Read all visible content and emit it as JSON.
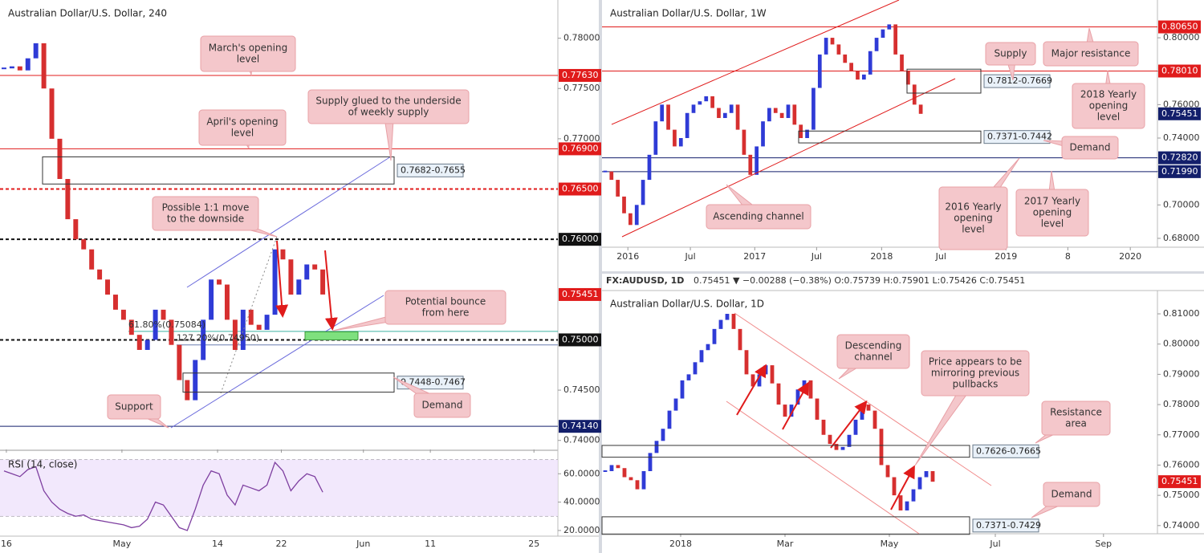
{
  "chart_data": [
    {
      "type": "candlestick",
      "title": "Australian Dollar/U.S. Dollar, 240",
      "up_color": "#2f3bd6",
      "down_color": "#d62f2f",
      "xlim": [
        0,
        70
      ],
      "ylim": [
        0.7391,
        0.7838
      ],
      "xticks": [
        {
          "value": 0.8,
          "label": "16"
        },
        {
          "value": 15.3,
          "label": "May"
        },
        {
          "value": 27.3,
          "label": "14"
        },
        {
          "value": 35.3,
          "label": "22"
        },
        {
          "value": 45.6,
          "label": "Jun"
        },
        {
          "value": 54,
          "label": "11"
        },
        {
          "value": 67,
          "label": "25"
        }
      ],
      "yticks": [
        {
          "value": 0.78,
          "label": "0.78000"
        },
        {
          "value": 0.775,
          "label": "0.77500"
        },
        {
          "value": 0.77,
          "label": "0.77000"
        },
        {
          "value": 0.745,
          "label": "0.74500"
        },
        {
          "value": 0.74,
          "label": "0.74000"
        }
      ],
      "values": [
        0.777,
        0.7772,
        0.7768,
        0.778,
        0.7795,
        0.775,
        0.77,
        0.766,
        0.762,
        0.76,
        0.759,
        0.757,
        0.756,
        0.7545,
        0.753,
        0.752,
        0.7505,
        0.749,
        0.75,
        0.753,
        0.752,
        0.7495,
        0.746,
        0.744,
        0.748,
        0.752,
        0.756,
        0.7555,
        0.752,
        0.749,
        0.753,
        0.7515,
        0.751,
        0.7525,
        0.759,
        0.758,
        0.7545,
        0.756,
        0.7575,
        0.757,
        0.75451
      ],
      "levels": [
        {
          "value": 0.7763,
          "label": "0.77630",
          "color": "#e01b1b",
          "style": "solid"
        },
        {
          "value": 0.769,
          "label": "0.76900",
          "color": "#e01b1b",
          "style": "solid"
        },
        {
          "value": 0.765,
          "label": "0.76500",
          "color": "#e01b1b",
          "style": "dashed"
        },
        {
          "value": 0.76,
          "label": "0.76000",
          "color": "#111111",
          "style": "dashed"
        },
        {
          "value": 0.75451,
          "label": "0.75451",
          "color": "#e01b1b",
          "style": "none"
        },
        {
          "value": 0.75,
          "label": "0.75000",
          "color": "#111111",
          "style": "dashed"
        },
        {
          "value": 0.7414,
          "label": "0.74140",
          "color": "#131f6b",
          "style": "solid"
        }
      ],
      "zones": [
        {
          "low": 0.7655,
          "high": 0.7682,
          "label": "0.7682-0.7655"
        },
        {
          "low": 0.7448,
          "high": 0.7467,
          "label": "0.7448-0.7467"
        },
        {
          "low": 0.75,
          "high": 0.7508,
          "color": "#7ee07e"
        }
      ],
      "fibs": [
        {
          "value": 0.75084,
          "label": "61.80%(0.75084)",
          "color": "#3cb3a0"
        },
        {
          "value": 0.7495,
          "label": "127.20%(0.74950)",
          "color": "#6a7fb0"
        }
      ],
      "annotations": [
        {
          "lines": [
            "March's opening",
            "level"
          ]
        },
        {
          "lines": [
            "April's opening",
            "level"
          ]
        },
        {
          "lines": [
            "Supply glued to the underside",
            "of weekly supply"
          ]
        },
        {
          "lines": [
            "Possible 1:1 move",
            "to the downside"
          ]
        },
        {
          "lines": [
            "Potential bounce",
            "from here"
          ]
        },
        {
          "lines": [
            "Support"
          ]
        },
        {
          "lines": [
            "Demand"
          ]
        }
      ]
    },
    {
      "type": "line",
      "title": "RSI (14, close)",
      "color": "#7e3fa0",
      "xlim": [
        0,
        70
      ],
      "ylim": [
        16,
        76
      ],
      "yticks": [
        {
          "value": 20,
          "label": "20.0000"
        },
        {
          "value": 40,
          "label": "40.0000"
        },
        {
          "value": 60,
          "label": "60.0000"
        }
      ],
      "bands": [
        30,
        70
      ],
      "values": [
        62,
        60,
        58,
        63,
        65,
        48,
        40,
        35,
        32,
        30,
        31,
        28,
        27,
        26,
        25,
        24,
        22,
        23,
        28,
        40,
        38,
        30,
        22,
        20,
        35,
        52,
        62,
        60,
        45,
        38,
        52,
        50,
        48,
        52,
        68,
        62,
        48,
        55,
        60,
        58,
        47
      ]
    },
    {
      "type": "candlestick",
      "title": "Australian Dollar/U.S. Dollar, 1W",
      "up_color": "#2f3bd6",
      "down_color": "#d62f2f",
      "xlim": [
        0,
        88
      ],
      "ylim": [
        0.6747,
        0.8226
      ],
      "xticks": [
        {
          "value": 4.1,
          "label": "2016"
        },
        {
          "value": 14,
          "label": "Jul"
        },
        {
          "value": 24.2,
          "label": "2017"
        },
        {
          "value": 34,
          "label": "Jul"
        },
        {
          "value": 44.3,
          "label": "2018"
        },
        {
          "value": 53.7,
          "label": "Jul"
        },
        {
          "value": 64,
          "label": "2019"
        },
        {
          "value": 73.8,
          "label": "8"
        },
        {
          "value": 83.7,
          "label": "2020"
        }
      ],
      "yticks": [
        {
          "value": 0.68,
          "label": "0.68000"
        },
        {
          "value": 0.7,
          "label": "0.70000"
        },
        {
          "value": 0.72,
          "label": "0.72000"
        },
        {
          "value": 0.74,
          "label": "0.74000"
        },
        {
          "value": 0.76,
          "label": "0.76000"
        },
        {
          "value": 0.78,
          "label": "0.78000"
        },
        {
          "value": 0.8,
          "label": "0.80000"
        }
      ],
      "values": [
        0.72,
        0.715,
        0.705,
        0.695,
        0.688,
        0.7,
        0.715,
        0.73,
        0.75,
        0.76,
        0.745,
        0.735,
        0.74,
        0.755,
        0.76,
        0.762,
        0.765,
        0.758,
        0.752,
        0.755,
        0.76,
        0.745,
        0.73,
        0.718,
        0.735,
        0.75,
        0.758,
        0.755,
        0.752,
        0.76,
        0.748,
        0.74,
        0.745,
        0.77,
        0.79,
        0.8,
        0.796,
        0.79,
        0.785,
        0.78,
        0.775,
        0.778,
        0.792,
        0.8,
        0.805,
        0.808,
        0.79,
        0.78,
        0.772,
        0.76,
        0.7545
      ],
      "levels": [
        {
          "value": 0.8065,
          "label": "0.80650",
          "color": "#e01b1b",
          "style": "solid"
        },
        {
          "value": 0.7801,
          "label": "0.78010",
          "color": "#e01b1b",
          "style": "solid"
        },
        {
          "value": 0.75451,
          "label": "0.75451",
          "color": "#131f6b",
          "style": "none"
        },
        {
          "value": 0.7282,
          "label": "0.72820",
          "color": "#131f6b",
          "style": "solid"
        },
        {
          "value": 0.7199,
          "label": "0.71990",
          "color": "#131f6b",
          "style": "solid"
        }
      ],
      "zones": [
        {
          "low": 0.7669,
          "high": 0.7812,
          "label": "0.7812-0.7669"
        },
        {
          "low": 0.7371,
          "high": 0.7442,
          "label": "0.7371-0.7442"
        }
      ],
      "annotations": [
        {
          "lines": [
            "Supply"
          ]
        },
        {
          "lines": [
            "Major resistance"
          ]
        },
        {
          "lines": [
            "2018 Yearly",
            "opening",
            "level"
          ]
        },
        {
          "lines": [
            "Demand"
          ]
        },
        {
          "lines": [
            "2016 Yearly",
            "opening",
            "level"
          ]
        },
        {
          "lines": [
            "2017 Yearly",
            "opening",
            "level"
          ]
        },
        {
          "lines": [
            "Ascending channel"
          ]
        }
      ]
    },
    {
      "type": "candlestick",
      "title": "Australian Dollar/U.S. Dollar, 1D",
      "symbol": "FX:AUDUSD, 1D",
      "quote": "0.75451 ▼ −0.00288 (−0.38%) O:0.75739 H:0.75901 L:0.75426 C:0.75451",
      "up_color": "#2f3bd6",
      "down_color": "#d62f2f",
      "xlim": [
        0,
        86.5
      ],
      "ylim": [
        0.7373,
        0.8177
      ],
      "xticks": [
        {
          "value": 12.25,
          "label": "2018"
        },
        {
          "value": 28.5,
          "label": "Mar"
        },
        {
          "value": 44.75,
          "label": "May"
        },
        {
          "value": 61.25,
          "label": "Jul"
        },
        {
          "value": 78.1,
          "label": "Sep"
        }
      ],
      "yticks": [
        {
          "value": 0.74,
          "label": "0.74000"
        },
        {
          "value": 0.75,
          "label": "0.75000"
        },
        {
          "value": 0.76,
          "label": "0.76000"
        },
        {
          "value": 0.77,
          "label": "0.77000"
        },
        {
          "value": 0.78,
          "label": "0.78000"
        },
        {
          "value": 0.79,
          "label": "0.79000"
        },
        {
          "value": 0.8,
          "label": "0.80000"
        },
        {
          "value": 0.81,
          "label": "0.81000"
        }
      ],
      "values": [
        0.758,
        0.76,
        0.759,
        0.756,
        0.755,
        0.752,
        0.758,
        0.764,
        0.768,
        0.772,
        0.778,
        0.782,
        0.788,
        0.79,
        0.794,
        0.798,
        0.8,
        0.805,
        0.808,
        0.81,
        0.805,
        0.798,
        0.79,
        0.786,
        0.79,
        0.793,
        0.787,
        0.78,
        0.776,
        0.78,
        0.785,
        0.788,
        0.782,
        0.775,
        0.77,
        0.767,
        0.765,
        0.766,
        0.77,
        0.775,
        0.78,
        0.778,
        0.772,
        0.76,
        0.756,
        0.75,
        0.745,
        0.748,
        0.752,
        0.756,
        0.758,
        0.7545
      ],
      "levels": [
        {
          "value": 0.75451,
          "label": "0.75451",
          "color": "#e01b1b",
          "style": "none"
        }
      ],
      "zones": [
        {
          "low": 0.7626,
          "high": 0.7665,
          "label": "0.7626-0.7665"
        },
        {
          "low": 0.7371,
          "high": 0.7429,
          "label": "0.7371-0.7429"
        }
      ],
      "annotations": [
        {
          "lines": [
            "Descending",
            "channel"
          ]
        },
        {
          "lines": [
            "Price appears to be",
            "mirroring previous",
            "pullbacks"
          ]
        },
        {
          "lines": [
            "Resistance",
            "area"
          ]
        },
        {
          "lines": [
            "Demand"
          ]
        }
      ]
    }
  ]
}
